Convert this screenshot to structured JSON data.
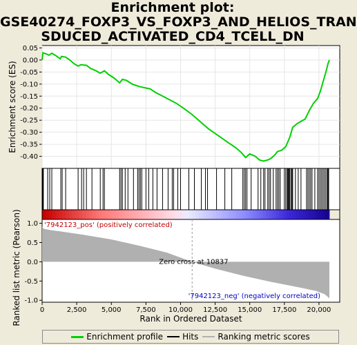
{
  "title_lines": [
    "Enrichment plot:",
    "GSE40274_FOXP3_VS_FOXP3_AND_HELIOS_TRAN",
    "SDUCED_ACTIVATED_CD4_TCELL_DN"
  ],
  "legend": {
    "items": [
      {
        "label": "Enrichment profile",
        "color": "#00d000"
      },
      {
        "label": "Hits",
        "color": "#000000"
      },
      {
        "label": "Ranking metric scores",
        "color": "#b0b0b0"
      }
    ]
  },
  "chart_data": [
    {
      "type": "line",
      "panel": "enrichment",
      "ylabel": "Enrichment score (ES)",
      "ylim": [
        -0.45,
        0.06
      ],
      "xlim": [
        0,
        21500
      ],
      "yticks": [
        0.05,
        0.0,
        -0.05,
        -0.1,
        -0.15,
        -0.2,
        -0.25,
        -0.3,
        -0.35,
        -0.4
      ],
      "ytick_labels": [
        "0.05",
        "0.00",
        "-0.05",
        "-0.10",
        "-0.15",
        "-0.20",
        "-0.25",
        "-0.30",
        "-0.35",
        "-0.40"
      ],
      "grid": true,
      "color": "#00d000",
      "points": [
        [
          0,
          0.0
        ],
        [
          60,
          0.03
        ],
        [
          300,
          0.025
        ],
        [
          500,
          0.02
        ],
        [
          700,
          0.028
        ],
        [
          1000,
          0.018
        ],
        [
          1300,
          0.005
        ],
        [
          1400,
          0.015
        ],
        [
          1700,
          0.012
        ],
        [
          2000,
          0.0
        ],
        [
          2300,
          -0.015
        ],
        [
          2600,
          -0.025
        ],
        [
          2800,
          -0.02
        ],
        [
          3200,
          -0.022
        ],
        [
          3500,
          -0.035
        ],
        [
          3900,
          -0.045
        ],
        [
          4200,
          -0.055
        ],
        [
          4500,
          -0.045
        ],
        [
          4800,
          -0.06
        ],
        [
          5200,
          -0.075
        ],
        [
          5600,
          -0.095
        ],
        [
          5800,
          -0.08
        ],
        [
          6100,
          -0.085
        ],
        [
          6500,
          -0.1
        ],
        [
          7000,
          -0.11
        ],
        [
          7400,
          -0.115
        ],
        [
          7800,
          -0.12
        ],
        [
          8200,
          -0.135
        ],
        [
          8700,
          -0.15
        ],
        [
          9200,
          -0.165
        ],
        [
          9700,
          -0.18
        ],
        [
          10200,
          -0.2
        ],
        [
          10800,
          -0.225
        ],
        [
          11400,
          -0.255
        ],
        [
          12000,
          -0.285
        ],
        [
          12500,
          -0.305
        ],
        [
          13000,
          -0.325
        ],
        [
          13500,
          -0.345
        ],
        [
          14000,
          -0.365
        ],
        [
          14400,
          -0.385
        ],
        [
          14700,
          -0.405
        ],
        [
          15000,
          -0.39
        ],
        [
          15400,
          -0.4
        ],
        [
          15700,
          -0.415
        ],
        [
          16000,
          -0.42
        ],
        [
          16300,
          -0.415
        ],
        [
          16500,
          -0.41
        ],
        [
          16800,
          -0.395
        ],
        [
          17000,
          -0.38
        ],
        [
          17300,
          -0.375
        ],
        [
          17600,
          -0.36
        ],
        [
          17900,
          -0.32
        ],
        [
          18100,
          -0.28
        ],
        [
          18400,
          -0.265
        ],
        [
          18700,
          -0.255
        ],
        [
          19000,
          -0.245
        ],
        [
          19300,
          -0.21
        ],
        [
          19600,
          -0.18
        ],
        [
          19900,
          -0.16
        ],
        [
          20100,
          -0.13
        ],
        [
          20300,
          -0.09
        ],
        [
          20500,
          -0.05
        ],
        [
          20650,
          -0.015
        ],
        [
          20750,
          0.0
        ]
      ]
    },
    {
      "type": "scatter",
      "panel": "hits",
      "xlim": [
        0,
        21500
      ],
      "hits": [
        50,
        70,
        90,
        400,
        550,
        700,
        1350,
        1450,
        1700,
        2600,
        2850,
        3000,
        3200,
        3600,
        4200,
        4400,
        4500,
        5600,
        5700,
        5800,
        6000,
        6200,
        6600,
        6900,
        7000,
        7100,
        7200,
        7500,
        7700,
        8000,
        8300,
        8700,
        9100,
        9400,
        9500,
        9800,
        10000,
        10600,
        11000,
        11500,
        11800,
        11950,
        12600,
        13200,
        13700,
        14500,
        14600,
        14700,
        14800,
        15100,
        15600,
        15800,
        16000,
        16100,
        16300,
        16400,
        16500,
        16700,
        16900,
        17000,
        17100,
        17200,
        17500,
        17600,
        17700,
        17750,
        17800,
        17850,
        17900,
        18000,
        18050,
        18100,
        18300,
        18500,
        18700,
        19100,
        19200,
        19300,
        19400,
        19500,
        19700,
        19900,
        20000,
        20100,
        20200,
        20300,
        20400,
        20500,
        20600,
        20650,
        20700
      ]
    },
    {
      "type": "area",
      "panel": "ranking",
      "ylabel": "Ranked list metric (Pearson)",
      "xlabel": "Rank in Ordered Dataset",
      "ylim": [
        -1.05,
        1.1
      ],
      "xlim": [
        0,
        21500
      ],
      "yticks": [
        1.0,
        0.5,
        0.0,
        -0.5,
        -1.0
      ],
      "ytick_labels": [
        "1.0",
        "0.5",
        "0.0",
        "-0.5",
        "-1.0"
      ],
      "xticks": [
        0,
        2500,
        5000,
        7500,
        10000,
        12500,
        15000,
        17500,
        20000
      ],
      "xtick_labels": [
        "0",
        "2,500",
        "5,000",
        "7,500",
        "10,000",
        "12,500",
        "15,000",
        "17,500",
        "20,000"
      ],
      "color": "#b0b0b0",
      "points": [
        [
          0,
          0.92
        ],
        [
          100,
          0.86
        ],
        [
          500,
          0.83
        ],
        [
          1500,
          0.78
        ],
        [
          3000,
          0.7
        ],
        [
          5000,
          0.58
        ],
        [
          7000,
          0.42
        ],
        [
          9000,
          0.24
        ],
        [
          10837,
          0.0
        ],
        [
          12500,
          -0.18
        ],
        [
          14500,
          -0.36
        ],
        [
          16500,
          -0.52
        ],
        [
          18500,
          -0.66
        ],
        [
          19800,
          -0.76
        ],
        [
          20400,
          -0.84
        ],
        [
          20600,
          -0.9
        ],
        [
          20750,
          -0.95
        ]
      ],
      "zero_cross": 10837,
      "annotations": {
        "pos": "'7942123_pos' (positively correlated)",
        "neg": "'7942123_neg' (negatively correlated)",
        "zero": "Zero cross at 10837"
      }
    }
  ]
}
